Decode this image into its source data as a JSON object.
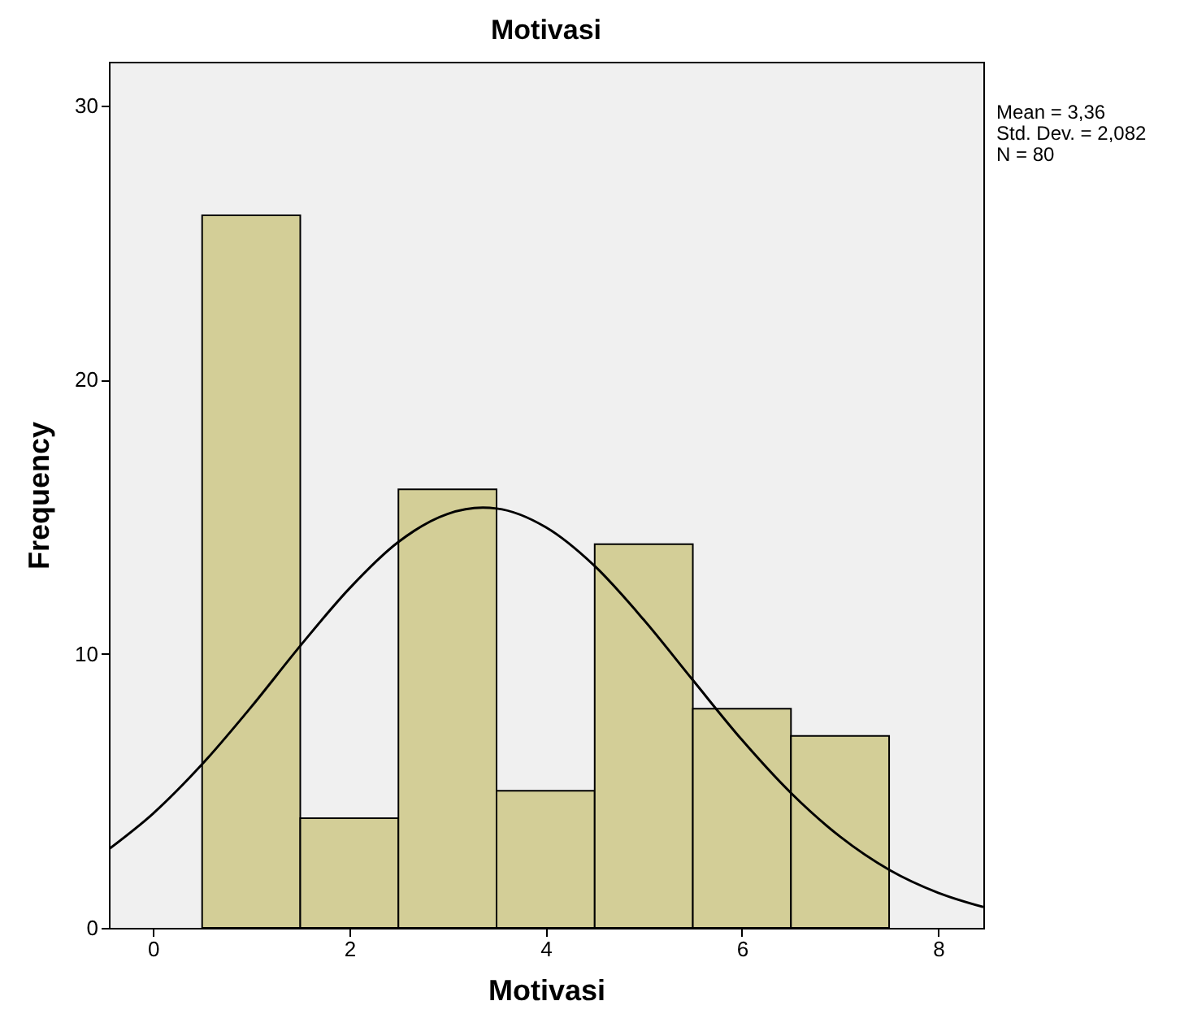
{
  "chart_data": {
    "type": "histogram",
    "title": "Motivasi",
    "xlabel": "Motivasi",
    "ylabel": "Frequency",
    "bins": [
      0.5,
      1.5,
      2.5,
      3.5,
      4.5,
      5.5,
      6.5,
      7.5
    ],
    "values": [
      26,
      4,
      16,
      5,
      14,
      8,
      7
    ],
    "color": "#d3ce97",
    "series": [
      {
        "type": "line",
        "color": "#000000",
        "x": [
          -0.45,
          0,
          0.5,
          1,
          1.5,
          2,
          2.5,
          3,
          3.36,
          3.5,
          4,
          4.5,
          5,
          5.5,
          6,
          6.5,
          7,
          7.5,
          8,
          8.46
        ],
        "values": [
          2.87,
          4.17,
          5.97,
          8.06,
          10.29,
          12.38,
          14.08,
          15.1,
          15.33,
          15.3,
          14.62,
          13.2,
          11.24,
          9.04,
          6.86,
          4.92,
          3.33,
          2.12,
          1.28,
          0.76
        ]
      }
    ],
    "xlim": [
      -0.45,
      8.46
    ],
    "ylim": [
      0,
      31.6
    ],
    "xticks": [
      0,
      2,
      4,
      6,
      8
    ],
    "yticks": [
      0,
      10,
      20,
      30
    ],
    "grid": false,
    "annotations": [
      "Mean = 3,36",
      "Std. Dev. = 2,082",
      "N = 80"
    ]
  }
}
